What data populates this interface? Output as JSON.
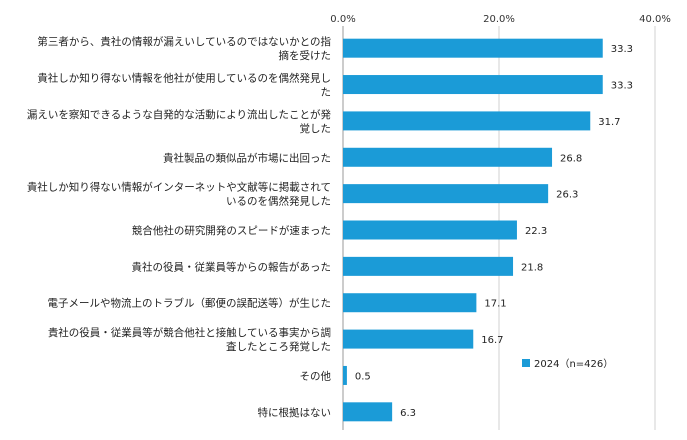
{
  "chart_data": {
    "type": "bar",
    "orientation": "horizontal",
    "title": "",
    "xlabel": "",
    "ylabel": "",
    "xlim": [
      0,
      40
    ],
    "x_ticks": [
      0,
      20,
      40
    ],
    "x_tick_labels": [
      "0.0%",
      "20.0%",
      "40.0%"
    ],
    "grid": true,
    "legend_position": "bottom-right",
    "categories": [
      [
        "第三者から、貴社の情報が漏えいしているのではないかとの指",
        "摘を受けた"
      ],
      [
        "貴社しか知り得ない情報を他社が使用しているのを偶然発見し",
        "た"
      ],
      [
        "漏えいを察知できるような自発的な活動により流出したことが発",
        "覚した"
      ],
      [
        "貴社製品の類似品が市場に出回った"
      ],
      [
        "貴社しか知り得ない情報がインターネットや文献等に掲載されて",
        "いるのを偶然発見した"
      ],
      [
        "競合他社の研究開発のスピードが速まった"
      ],
      [
        "貴社の役員・従業員等からの報告があった"
      ],
      [
        "電子メールや物流上のトラブル（郵便の誤配送等）が生じた"
      ],
      [
        "貴社の役員・従業員等が競合他社と接触している事実から調",
        "査したところ発覚した"
      ],
      [
        "その他"
      ],
      [
        "特に根拠はない"
      ]
    ],
    "series": [
      {
        "name": "2024（n=426）",
        "color": "#1b9bd7",
        "values": [
          33.3,
          33.3,
          31.7,
          26.8,
          26.3,
          22.3,
          21.8,
          17.1,
          16.7,
          0.5,
          6.3
        ],
        "value_labels": [
          "33.3",
          "33.3",
          "31.7",
          "26.8",
          "26.3",
          "22.3",
          "21.8",
          "17.1",
          "16.7",
          "0.5",
          "6.3"
        ]
      }
    ]
  }
}
